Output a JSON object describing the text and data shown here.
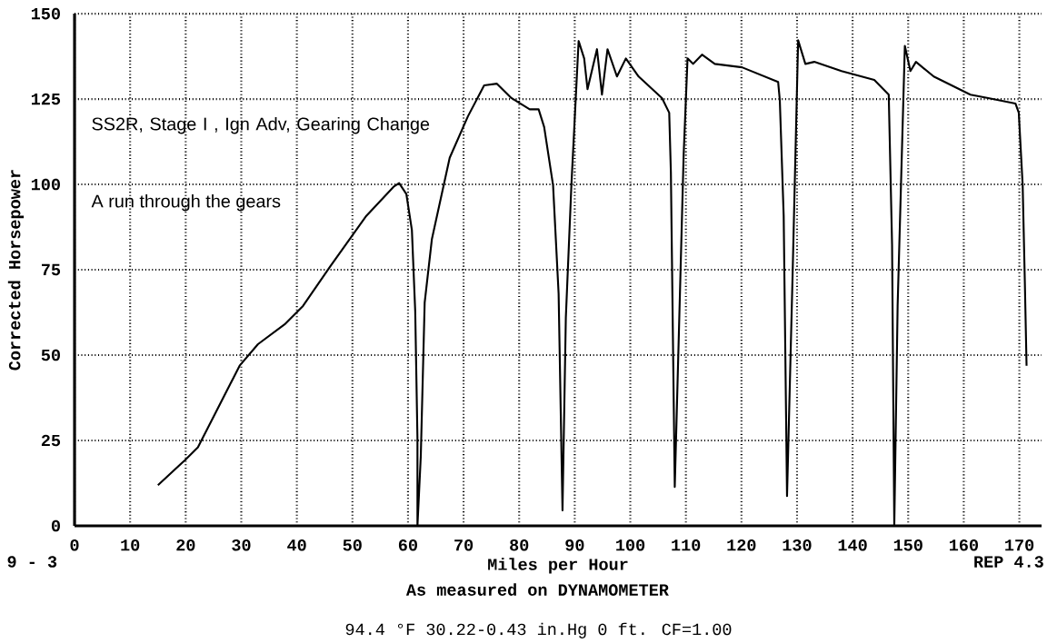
{
  "chart_data": {
    "type": "line",
    "xlabel": "Miles per Hour",
    "ylabel": "Corrected Horsepower",
    "annotations": [
      "SS2R, Stage I , Ign Adv, Gearing Change",
      "A run through the gears",
      "9 - 3",
      "REP 4.3",
      "As measured on DYNAMOMETER",
      "94.4 °F   30.22-0.43 in.Hg   0 ft.   CF=1.00"
    ],
    "xlim": [
      0,
      174
    ],
    "ylim": [
      0,
      150
    ],
    "xticks": [
      0,
      10,
      20,
      30,
      40,
      50,
      60,
      70,
      80,
      90,
      100,
      110,
      120,
      130,
      140,
      150,
      160,
      170
    ],
    "yticks": [
      0,
      25,
      50,
      75,
      100,
      125,
      150
    ],
    "grid": true,
    "marker": "none",
    "line_style": "solid",
    "series": [
      {
        "color": "#000000",
        "x": [
          15.0,
          19.9,
          22.2,
          29.7,
          33.0,
          37.8,
          41.1,
          46.0,
          52.5,
          57.4,
          58.4,
          59.7,
          60.7,
          61.3,
          61.7,
          61.7,
          62.3,
          63.0,
          64.3,
          67.5,
          70.8,
          73.7,
          76.0,
          78.6,
          81.9,
          83.5,
          84.5,
          86.1,
          87.1,
          87.8,
          88.4,
          89.4,
          90.7,
          91.7,
          92.3,
          94.0,
          94.9,
          95.9,
          97.6,
          99.2,
          101.5,
          105.7,
          107.0,
          107.3,
          108.0,
          109.6,
          110.3,
          111.3,
          112.9,
          115.2,
          120.1,
          126.6,
          126.9,
          127.6,
          128.2,
          129.2,
          130.2,
          131.5,
          133.1,
          138.0,
          143.9,
          146.5,
          147.1,
          147.5,
          148.1,
          149.4,
          150.4,
          151.4,
          154.6,
          161.2,
          164.4,
          169.3,
          169.9,
          170.6,
          171.0,
          171.3
        ],
        "values": [
          11.9,
          19.3,
          23,
          46.9,
          53.2,
          59,
          64.4,
          76,
          90.8,
          99.3,
          100.4,
          97.2,
          86.6,
          62.8,
          25.7,
          0,
          20.4,
          65.4,
          84,
          107.8,
          120,
          129,
          129.5,
          125.3,
          122,
          122,
          116.8,
          99.8,
          68,
          4.5,
          61,
          99.8,
          142,
          136.9,
          127.9,
          139.6,
          126.3,
          139.6,
          131.6,
          136.9,
          131.6,
          125.3,
          121,
          103.6,
          11.4,
          108.8,
          136.9,
          135.3,
          138,
          135.3,
          134.3,
          130,
          124.7,
          90.8,
          8.7,
          73.4,
          142.2,
          135.3,
          135.9,
          133.2,
          130.6,
          126.3,
          82.4,
          0,
          64.4,
          140.6,
          133.2,
          135.9,
          131.6,
          126.3,
          125.3,
          123.7,
          121,
          99.8,
          70.7,
          46.9
        ]
      }
    ]
  }
}
